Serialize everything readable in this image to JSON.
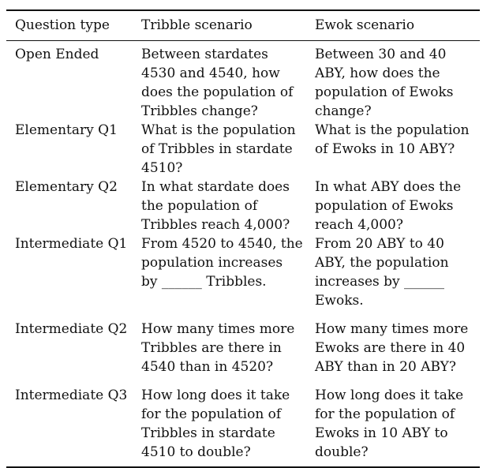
{
  "table": {
    "headers": [
      "Question type",
      "Tribble scenario",
      "Ewok scenario"
    ],
    "rows": [
      {
        "type": "Open Ended",
        "tribble": [
          "Between stardates",
          "4530 and 4540, how",
          "does the population of",
          "Tribbles change?"
        ],
        "ewok": [
          "Between 30 and 40",
          "ABY, how does the",
          "population of Ewoks",
          "change?"
        ]
      },
      {
        "type": "Elementary Q1",
        "tribble": [
          "What is the population",
          "of Tribbles in stardate",
          "4510?"
        ],
        "ewok": [
          "What is the population",
          "of Ewoks in 10 ABY?"
        ]
      },
      {
        "type": "Elementary Q2",
        "tribble": [
          "In what stardate does",
          "the population of",
          "Tribbles reach 4,000?"
        ],
        "ewok": [
          "In what ABY does the",
          "population of Ewoks",
          "reach 4,000?"
        ]
      },
      {
        "type": "Intermediate Q1",
        "tribble": [
          "From 4520 to 4540, the",
          "population increases",
          "by ______ Tribbles."
        ],
        "ewok": [
          "From 20 ABY to 40",
          "ABY, the population",
          "increases by ______",
          "Ewoks."
        ]
      },
      {
        "type": "Intermediate Q2",
        "tribble": [
          "How many times more",
          "Tribbles are there in",
          "4540 than in 4520?"
        ],
        "ewok": [
          "How many times more",
          "Ewoks are there in 40",
          "ABY than in 20 ABY?"
        ]
      },
      {
        "type": "Intermediate Q3",
        "tribble": [
          "How long does it take",
          "for the population of",
          "Tribbles in stardate",
          "4510 to double?"
        ],
        "ewok": [
          "How long does it take",
          "for the population of",
          "Ewoks in 10 ABY to",
          "double?"
        ]
      }
    ]
  }
}
